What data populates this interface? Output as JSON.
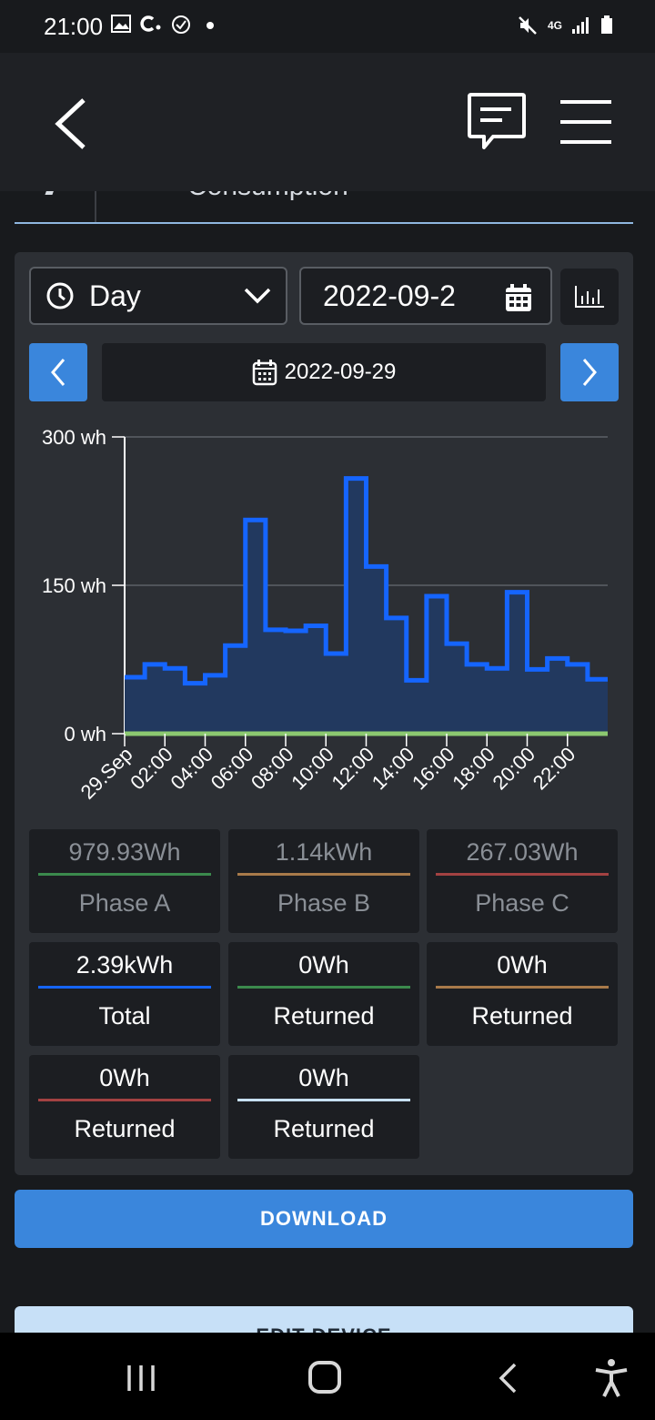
{
  "status_bar": {
    "time": "21:00",
    "left_icons": [
      "image-icon",
      "c-app-icon",
      "check-circle-icon",
      "dot-icon"
    ],
    "right_icons": [
      "mute-icon",
      "4g-icon",
      "signal-icon",
      "battery-icon"
    ],
    "network_label": "4G"
  },
  "header": {
    "back_icon": "chevron-left-icon",
    "chat_icon": "chat-bubble-icon",
    "menu_icon": "hamburger-icon"
  },
  "subtabs": {
    "partial_label": "Consumption"
  },
  "controls": {
    "period_label": "Day",
    "date_value": "2022-09-2",
    "chart_type_icon": "bar-chart-icon",
    "current_date": "2022-09-29"
  },
  "chart_data": {
    "type": "area",
    "step": true,
    "ylim": [
      0,
      300
    ],
    "yticks": [
      "0 wh",
      "150 wh",
      "300 wh"
    ],
    "xticks": [
      "29.Sep",
      "02:00",
      "04:00",
      "06:00",
      "08:00",
      "10:00",
      "12:00",
      "14:00",
      "16:00",
      "18:00",
      "20:00",
      "22:00"
    ],
    "series": [
      {
        "color": "#1565ff",
        "values": [
          57,
          70,
          66,
          51,
          59,
          89,
          216,
          105,
          104,
          109,
          81,
          258,
          169,
          117,
          54,
          139,
          91,
          70,
          66,
          143,
          65,
          76,
          70,
          55
        ]
      },
      {
        "color": "#8cc870",
        "values": [
          0,
          0,
          0,
          0,
          0,
          0,
          0,
          0,
          0,
          0,
          0,
          0,
          0,
          0,
          0,
          0,
          0,
          0,
          0,
          0,
          0,
          0,
          0,
          0
        ]
      }
    ],
    "grid": true
  },
  "stats": [
    {
      "value": "979.93Wh",
      "label": "Phase A",
      "color": "#3b8a4d",
      "dim": true
    },
    {
      "value": "1.14kWh",
      "label": "Phase B",
      "color": "#a87a4a",
      "dim": true
    },
    {
      "value": "267.03Wh",
      "label": "Phase C",
      "color": "#a34242",
      "dim": true
    },
    {
      "value": "2.39kWh",
      "label": "Total",
      "color": "#1565ff",
      "dim": false
    },
    {
      "value": "0Wh",
      "label": "Returned",
      "color": "#3b8a4d",
      "dim": false
    },
    {
      "value": "0Wh",
      "label": "Returned",
      "color": "#a87a4a",
      "dim": false
    },
    {
      "value": "0Wh",
      "label": "Returned",
      "color": "#a34242",
      "dim": false
    },
    {
      "value": "0Wh",
      "label": "Returned",
      "color": "#c7e0f7",
      "dim": false
    }
  ],
  "actions": {
    "download_label": "DOWNLOAD",
    "edit_label": "EDIT DEVICE"
  },
  "system_nav": {
    "icons": [
      "recent-apps-icon",
      "home-icon",
      "back-icon",
      "accessibility-icon"
    ]
  }
}
